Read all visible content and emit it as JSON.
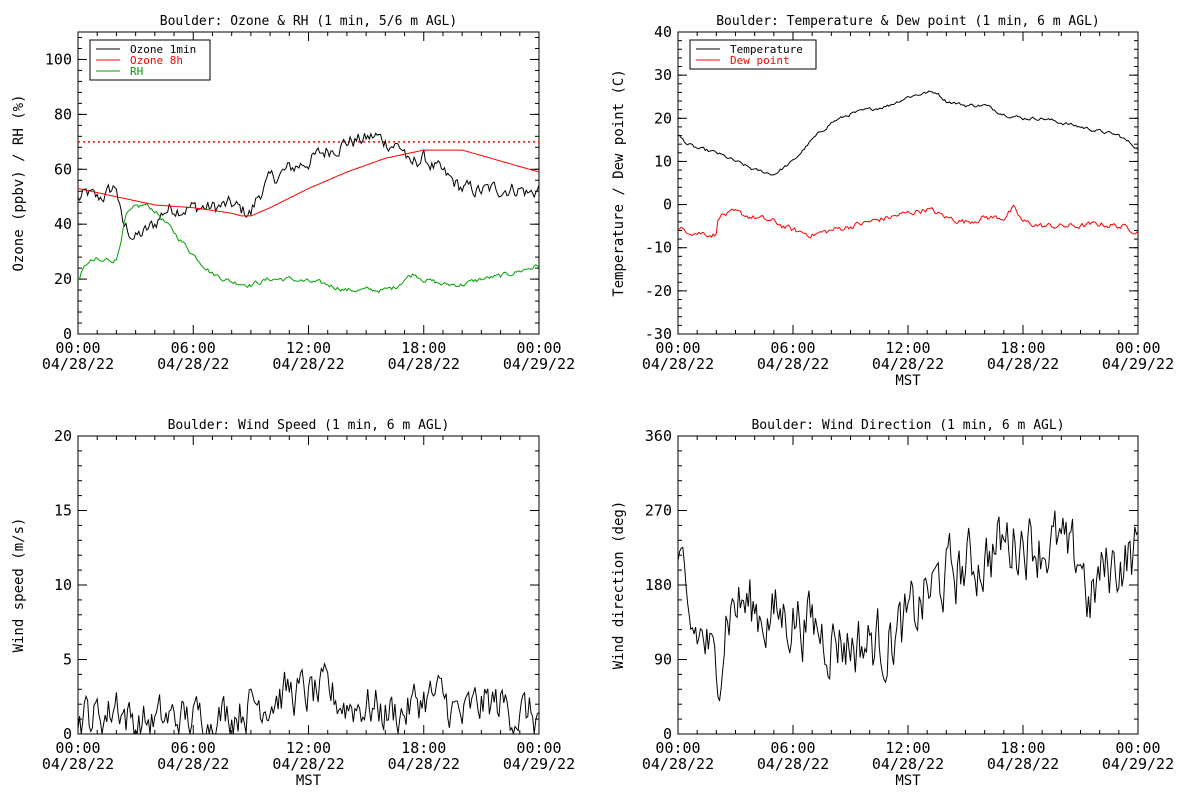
{
  "chart_data": [
    {
      "type": "line",
      "title": "Boulder: Ozone & RH (1 min, 5/6 m AGL)",
      "ylabel": "Ozone (ppbv) / RH (%)",
      "xlabel": "",
      "ylim": [
        0,
        110
      ],
      "yticks": [
        0,
        20,
        40,
        60,
        80,
        100
      ],
      "xlim": [
        "04/28/22 00:00",
        "04/29/22 00:00"
      ],
      "xtick_times": [
        "00:00",
        "06:00",
        "12:00",
        "18:00",
        "00:00"
      ],
      "xtick_dates": [
        "04/28/22",
        "04/28/22",
        "04/28/22",
        "04/28/22",
        "04/29/22"
      ],
      "legend_position": "top-left",
      "reference_line": {
        "y": 70,
        "color": "#ff0000",
        "style": "dotted"
      },
      "series": [
        {
          "name": "Ozone 1min",
          "color": "#000000",
          "noise": 2.5,
          "x": [
            0,
            0.5,
            1,
            1.5,
            2,
            2.3,
            3,
            3.5,
            4,
            4.5,
            5,
            6,
            7,
            8,
            8.5,
            9,
            9.3,
            9.6,
            10,
            11,
            12,
            13,
            14,
            15,
            15.5,
            16,
            16.5,
            17,
            17.3,
            17.6,
            18,
            19,
            20,
            21,
            22,
            23,
            23.5,
            24
          ],
          "y": [
            49,
            51,
            49,
            51,
            54,
            40,
            35,
            37,
            40,
            45,
            46,
            46,
            46,
            47,
            45,
            44,
            49,
            53,
            56,
            60,
            63,
            67,
            70,
            71,
            72,
            70,
            69,
            67,
            60,
            63,
            64,
            58,
            53,
            52,
            53,
            53,
            51,
            53
          ]
        },
        {
          "name": "Ozone 8h",
          "color": "#ff0000",
          "noise": 0,
          "x": [
            0,
            2,
            4,
            6,
            7,
            8,
            8.5,
            9,
            10,
            12,
            14,
            16,
            18,
            19,
            20,
            21,
            22,
            23,
            24
          ],
          "y": [
            53,
            50,
            47,
            46,
            45,
            44,
            43,
            43,
            46,
            53,
            59,
            64,
            67,
            67,
            67,
            65,
            63,
            61,
            59
          ]
        },
        {
          "name": "RH",
          "color": "#00a000",
          "noise": 0.8,
          "x": [
            0,
            0.5,
            1,
            1.2,
            1.5,
            2,
            2.5,
            3,
            3.5,
            4,
            5,
            6,
            7,
            8,
            9,
            10,
            11,
            12,
            13,
            14,
            15,
            16,
            16.5,
            17,
            17.5,
            18,
            19,
            20,
            21,
            22,
            23,
            24
          ],
          "y": [
            20,
            26,
            27,
            26,
            27,
            27,
            43,
            46,
            47,
            45,
            37,
            29,
            22,
            19,
            18,
            20,
            20,
            19,
            18,
            16,
            16,
            16,
            17,
            20,
            22,
            20,
            18,
            18,
            20,
            21,
            23,
            25
          ]
        }
      ]
    },
    {
      "type": "line",
      "title": "Boulder: Temperature & Dew point (1 min, 6 m AGL)",
      "ylabel": "Temperature / Dew point (C)",
      "xlabel": "MST",
      "ylim": [
        -30,
        40
      ],
      "yticks": [
        -30,
        -20,
        -10,
        0,
        10,
        20,
        30,
        40
      ],
      "xlim": [
        "04/28/22 00:00",
        "04/29/22 00:00"
      ],
      "xtick_times": [
        "00:00",
        "06:00",
        "12:00",
        "18:00",
        "00:00"
      ],
      "xtick_dates": [
        "04/28/22",
        "04/28/22",
        "04/28/22",
        "04/28/22",
        "04/29/22"
      ],
      "legend_position": "top-left",
      "series": [
        {
          "name": "Temperature",
          "color": "#000000",
          "noise": 0.35,
          "x": [
            0,
            0.5,
            1,
            2,
            3,
            4,
            5,
            6,
            7,
            8,
            9,
            10,
            11,
            12,
            13,
            13.5,
            14,
            15,
            16,
            17,
            18,
            19,
            20,
            21,
            22,
            23,
            24
          ],
          "y": [
            16,
            14,
            13,
            12,
            10,
            8,
            7,
            10,
            15,
            19,
            21,
            22,
            23,
            25,
            26,
            26,
            24,
            23,
            23,
            21,
            20,
            20,
            19,
            18,
            17,
            16,
            13
          ]
        },
        {
          "name": "Dew point",
          "color": "#ff0000",
          "noise": 0.6,
          "x": [
            0,
            0.5,
            1,
            2,
            2.1,
            3,
            4,
            5,
            6,
            7,
            8,
            9,
            10,
            11,
            12,
            13,
            14,
            15,
            16,
            17,
            17.5,
            18,
            19,
            20,
            21,
            22,
            23,
            24
          ],
          "y": [
            -6,
            -6,
            -6.5,
            -7,
            -2.5,
            -2,
            -3,
            -4,
            -6,
            -7,
            -6,
            -5,
            -4,
            -3,
            -2,
            -1,
            -3,
            -4,
            -3,
            -3,
            -1,
            -4,
            -5,
            -5,
            -5,
            -4.5,
            -5,
            -6
          ]
        }
      ]
    },
    {
      "type": "line",
      "title": "Boulder: Wind Speed (1 min, 6 m AGL)",
      "ylabel": "Wind speed (m/s)",
      "xlabel": "MST",
      "ylim": [
        0,
        20
      ],
      "yticks": [
        0,
        5,
        10,
        15,
        20
      ],
      "xlim": [
        "04/28/22 00:00",
        "04/29/22 00:00"
      ],
      "xtick_times": [
        "00:00",
        "06:00",
        "12:00",
        "18:00",
        "00:00"
      ],
      "xtick_dates": [
        "04/28/22",
        "04/28/22",
        "04/28/22",
        "04/28/22",
        "04/29/22"
      ],
      "series": [
        {
          "color": "#000000",
          "noise": 1.3,
          "floor": 0,
          "x": [
            0,
            1,
            1.7,
            2,
            2.5,
            3,
            4,
            5,
            6,
            7,
            8,
            9,
            10,
            11,
            12,
            13,
            14,
            15,
            16,
            17,
            18,
            19,
            20,
            21,
            22,
            23,
            24
          ],
          "y": [
            1.3,
            1.2,
            1.5,
            2.5,
            1.2,
            0.8,
            0.8,
            1.0,
            1.0,
            1.2,
            1.5,
            2.0,
            2.5,
            2.8,
            2.6,
            2.6,
            2.0,
            2.0,
            1.5,
            1.5,
            2.5,
            2.3,
            1.0,
            2.0,
            2.0,
            1.5,
            1.0
          ]
        }
      ]
    },
    {
      "type": "line",
      "title": "Boulder: Wind Direction (1 min, 6 m AGL)",
      "ylabel": "Wind direction (deg)",
      "xlabel": "MST",
      "ylim": [
        0,
        360
      ],
      "yticks": [
        0,
        90,
        180,
        270,
        360
      ],
      "xlim": [
        "04/28/22 00:00",
        "04/29/22 00:00"
      ],
      "xtick_times": [
        "00:00",
        "06:00",
        "12:00",
        "18:00",
        "00:00"
      ],
      "xtick_dates": [
        "04/28/22",
        "04/28/22",
        "04/28/22",
        "04/28/22",
        "04/29/22"
      ],
      "series": [
        {
          "color": "#000000",
          "noise": 35,
          "floor": 8,
          "ceil": 340,
          "x": [
            0,
            0.5,
            1,
            1.5,
            2,
            2.5,
            3,
            4,
            5,
            6,
            7,
            8,
            9,
            10,
            11,
            12,
            12.5,
            13,
            14,
            15,
            16,
            17,
            18,
            19,
            20,
            20.5,
            21,
            21.5,
            22,
            23,
            24
          ],
          "y": [
            220,
            120,
            120,
            110,
            60,
            150,
            160,
            150,
            140,
            145,
            130,
            120,
            110,
            110,
            115,
            130,
            150,
            170,
            190,
            200,
            215,
            230,
            240,
            230,
            225,
            200,
            220,
            150,
            190,
            210,
            220
          ]
        }
      ]
    }
  ]
}
